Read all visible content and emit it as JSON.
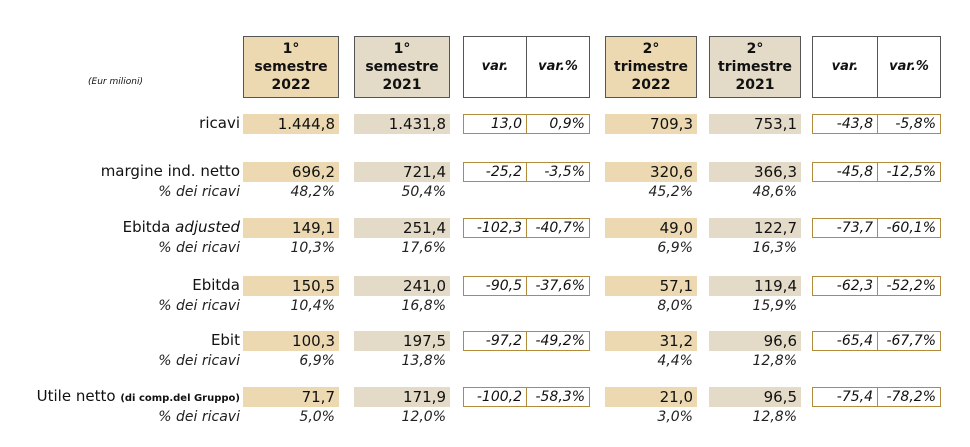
{
  "unit_note": "(Eur milioni)",
  "headers": {
    "h1": [
      "1° semestre",
      "2022"
    ],
    "h2": [
      "1° semestre",
      "2021"
    ],
    "var": "var.",
    "var_pct": "var.%",
    "h3": [
      "2°",
      "trimestre",
      "2022"
    ],
    "h4": [
      "2°",
      "trimestre",
      "2021"
    ]
  },
  "rows": [
    {
      "label": "ricavi",
      "c1": "1.444,8",
      "c2": "1.431,8",
      "v1": "13,0",
      "vp1": "0,9%",
      "c3": "709,3",
      "c4": "753,1",
      "v2": "-43,8",
      "vp2": "-5,8%"
    },
    {
      "label": "margine ind. netto",
      "c1": "696,2",
      "c2": "721,4",
      "v1": "-25,2",
      "vp1": "-3,5%",
      "c3": "320,6",
      "c4": "366,3",
      "v2": "-45,8",
      "vp2": "-12,5%",
      "sub": "% dei ricavi",
      "p1": "48,2%",
      "p2": "50,4%",
      "p3": "45,2%",
      "p4": "48,6%"
    },
    {
      "label": "Ebitda",
      "label_em": "adjusted",
      "c1": "149,1",
      "c2": "251,4",
      "v1": "-102,3",
      "vp1": "-40,7%",
      "c3": "49,0",
      "c4": "122,7",
      "v2": "-73,7",
      "vp2": "-60,1%",
      "sub": "% dei ricavi",
      "p1": "10,3%",
      "p2": "17,6%",
      "p3": "6,9%",
      "p4": "16,3%"
    },
    {
      "label": "Ebitda",
      "c1": "150,5",
      "c2": "241,0",
      "v1": "-90,5",
      "vp1": "-37,6%",
      "c3": "57,1",
      "c4": "119,4",
      "v2": "-62,3",
      "vp2": "-52,2%",
      "sub": "% dei ricavi",
      "p1": "10,4%",
      "p2": "16,8%",
      "p3": "8,0%",
      "p4": "15,9%"
    },
    {
      "label": "Ebit",
      "c1": "100,3",
      "c2": "197,5",
      "v1": "-97,2",
      "vp1": "-49,2%",
      "c3": "31,2",
      "c4": "96,6",
      "v2": "-65,4",
      "vp2": "-67,7%",
      "sub": "% dei ricavi",
      "p1": "6,9%",
      "p2": "13,8%",
      "p3": "4,4%",
      "p4": "12,8%"
    },
    {
      "label": "Utile netto",
      "label_small": "(di comp.del Gruppo)",
      "c1": "71,7",
      "c2": "171,9",
      "v1": "-100,2",
      "vp1": "-58,3%",
      "c3": "21,0",
      "c4": "96,5",
      "v2": "-75,4",
      "vp2": "-78,2%",
      "sub": "% dei ricavi",
      "p1": "5,0%",
      "p2": "12,0%",
      "p3": "3,0%",
      "p4": "12,8%"
    }
  ]
}
